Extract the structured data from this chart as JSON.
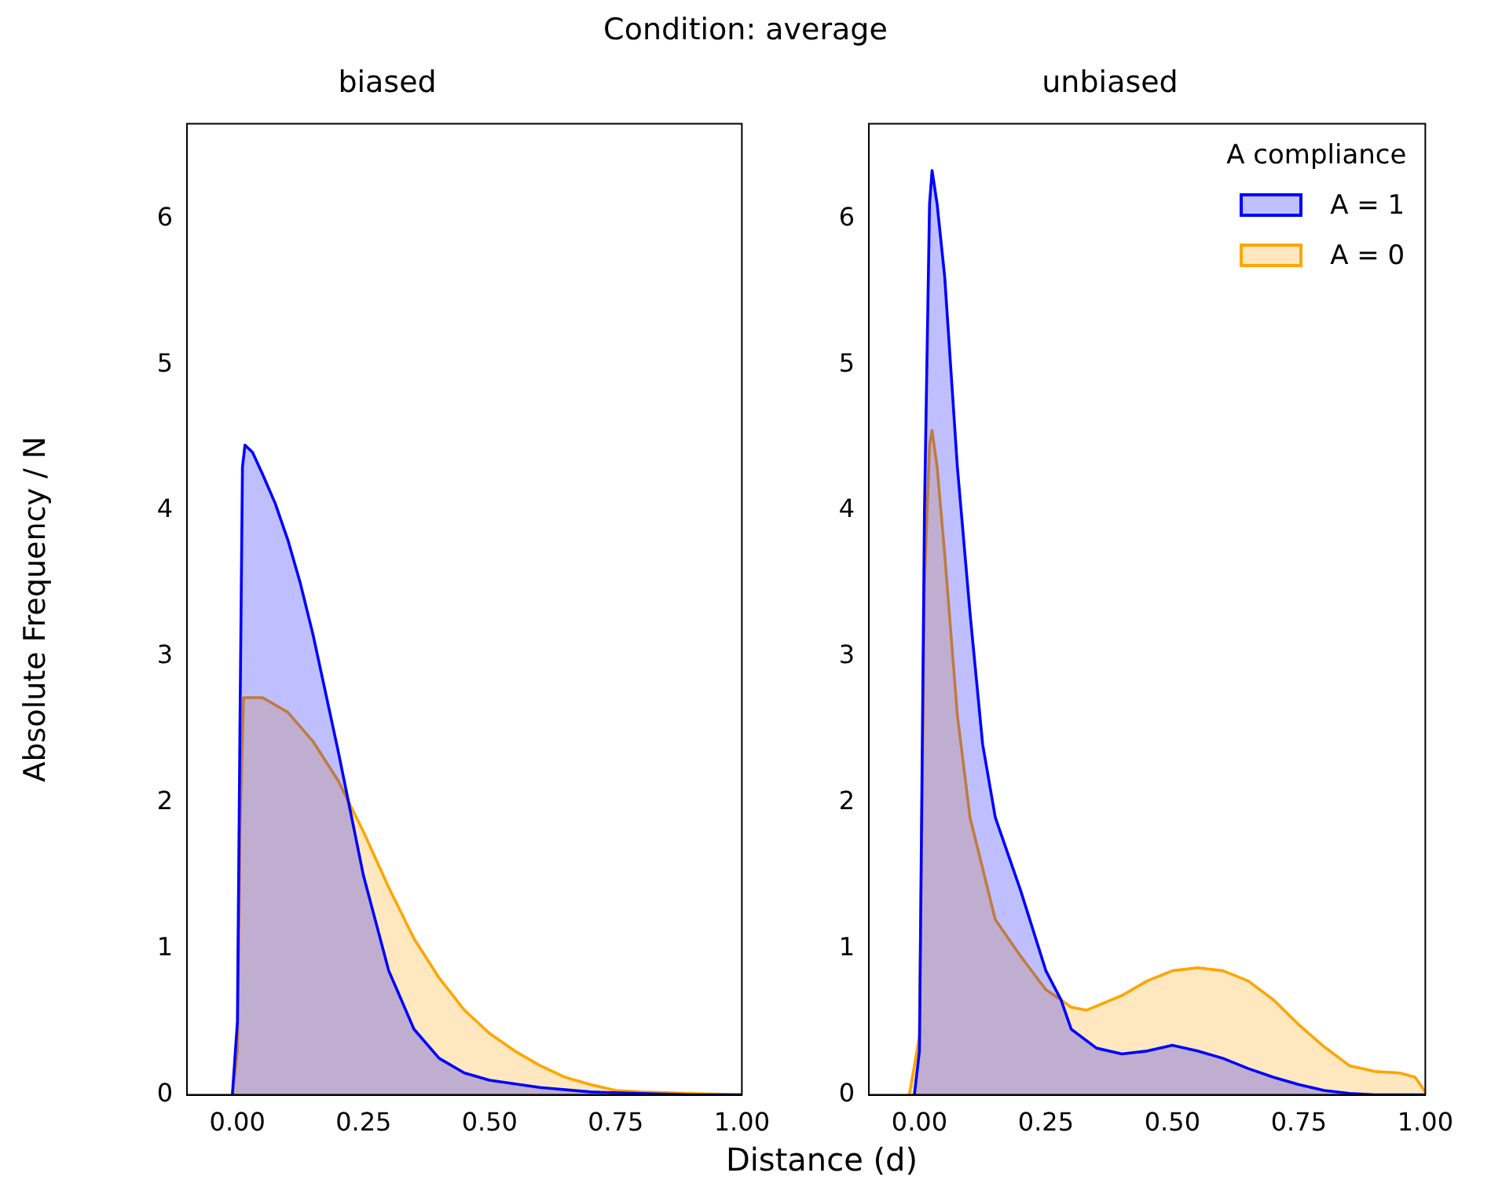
{
  "chart_data": [
    {
      "type": "area",
      "title": "biased",
      "annotations": [
        "Condition: average"
      ],
      "xlabel": "Distance (d)",
      "ylabel": "Absolute Frequency / N",
      "xlim": [
        -0.1,
        1.0
      ],
      "ylim": [
        0,
        6.65
      ],
      "xticks": [
        {
          "value": 0,
          "label": "0.00"
        },
        {
          "value": 0.25,
          "label": "0.25"
        },
        {
          "value": 0.5,
          "label": "0.50"
        },
        {
          "value": 0.75,
          "label": "0.75"
        },
        {
          "value": 1.0,
          "label": "1.00"
        }
      ],
      "yticks": [
        0,
        1,
        2,
        3,
        4,
        5,
        6
      ],
      "marker": "none",
      "line_style": "solid",
      "series": [
        {
          "color": "#0000ff",
          "x": [
            -0.01,
            0.0,
            0.005,
            0.01,
            0.015,
            0.03,
            0.05,
            0.075,
            0.1,
            0.125,
            0.15,
            0.175,
            0.2,
            0.25,
            0.3,
            0.35,
            0.4,
            0.45,
            0.5,
            0.6,
            0.7,
            0.8,
            0.9,
            1.0
          ],
          "values": [
            0,
            0.5,
            2.5,
            4.3,
            4.45,
            4.4,
            4.25,
            4.05,
            3.8,
            3.5,
            3.15,
            2.75,
            2.35,
            1.5,
            0.85,
            0.45,
            0.25,
            0.15,
            0.1,
            0.05,
            0.02,
            0.01,
            0,
            0
          ]
        },
        {
          "color": "#ffa500",
          "x": [
            -0.01,
            0.0,
            0.005,
            0.012,
            0.05,
            0.1,
            0.15,
            0.2,
            0.25,
            0.3,
            0.35,
            0.4,
            0.45,
            0.5,
            0.55,
            0.6,
            0.65,
            0.7,
            0.75,
            0.8,
            0.9,
            1.0
          ],
          "values": [
            0,
            0.3,
            1.8,
            2.72,
            2.72,
            2.62,
            2.42,
            2.15,
            1.8,
            1.42,
            1.07,
            0.8,
            0.58,
            0.42,
            0.3,
            0.2,
            0.12,
            0.07,
            0.03,
            0.02,
            0.01,
            0
          ]
        }
      ]
    },
    {
      "type": "area",
      "title": "unbiased",
      "legend": "top right",
      "legend_title": "A compliance",
      "xlim": [
        -0.1,
        1.0
      ],
      "ylim": [
        0,
        6.65
      ],
      "xticks": [
        {
          "value": 0,
          "label": "0.00"
        },
        {
          "value": 0.25,
          "label": "0.25"
        },
        {
          "value": 0.5,
          "label": "0.50"
        },
        {
          "value": 0.75,
          "label": "0.75"
        },
        {
          "value": 1.0,
          "label": "1.00"
        }
      ],
      "yticks": [
        0,
        1,
        2,
        3,
        4,
        5,
        6
      ],
      "marker": "none",
      "line_style": "solid",
      "series": [
        {
          "name": "A = 1",
          "color": "#0000ff",
          "x": [
            -0.01,
            0.0,
            0.01,
            0.02,
            0.025,
            0.035,
            0.05,
            0.075,
            0.1,
            0.125,
            0.15,
            0.2,
            0.25,
            0.28,
            0.3,
            0.35,
            0.4,
            0.45,
            0.5,
            0.55,
            0.6,
            0.65,
            0.7,
            0.75,
            0.8,
            0.85,
            0.9,
            1.0
          ],
          "values": [
            0,
            0.3,
            4.0,
            6.1,
            6.33,
            6.1,
            5.6,
            4.3,
            3.3,
            2.4,
            1.9,
            1.4,
            0.85,
            0.65,
            0.45,
            0.32,
            0.28,
            0.3,
            0.34,
            0.3,
            0.25,
            0.18,
            0.12,
            0.07,
            0.03,
            0.01,
            0,
            0
          ]
        },
        {
          "name": "A = 0",
          "color": "#ffa500",
          "x": [
            -0.02,
            0.0,
            0.01,
            0.02,
            0.025,
            0.035,
            0.05,
            0.075,
            0.1,
            0.15,
            0.2,
            0.25,
            0.28,
            0.3,
            0.33,
            0.4,
            0.45,
            0.5,
            0.55,
            0.6,
            0.65,
            0.7,
            0.75,
            0.8,
            0.85,
            0.9,
            0.95,
            0.98,
            1.0
          ],
          "values": [
            0,
            0.4,
            3.5,
            4.45,
            4.55,
            4.3,
            3.7,
            2.6,
            1.9,
            1.2,
            0.95,
            0.72,
            0.65,
            0.6,
            0.58,
            0.68,
            0.78,
            0.85,
            0.87,
            0.85,
            0.78,
            0.65,
            0.48,
            0.33,
            0.2,
            0.16,
            0.15,
            0.12,
            0.02
          ]
        }
      ]
    }
  ]
}
